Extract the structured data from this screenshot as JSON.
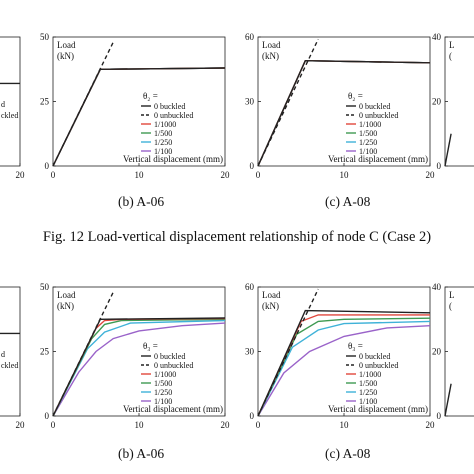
{
  "figure": {
    "caption_top": "Fig. 12 Load-vertical displacement relationship of node C (Case 2)"
  },
  "series_colors": {
    "0 buckled": "#222222",
    "0 unbuckled": "#222222",
    "1/1000": "#e0463c",
    "1/500": "#3f9a52",
    "1/250": "#3fb2d8",
    "1/100": "#9a63c9"
  },
  "chart_data": [
    {
      "type": "line",
      "panel": "left-top (cropped)",
      "subtitle": "",
      "xlabel": "",
      "ylabel": "",
      "xlim": [
        0,
        20
      ],
      "ylim": [
        0,
        50
      ],
      "x_ticks": [
        20
      ],
      "y_ticks": [],
      "legend_lines": [
        "d",
        "ckled"
      ],
      "series": [
        {
          "name": "0 buckled",
          "x": [
            0,
            20
          ],
          "y": [
            32,
            32
          ]
        }
      ]
    },
    {
      "type": "line",
      "panel": "b-top",
      "subtitle": "(b) A-06",
      "ylabel": "Load\n(kN)",
      "xlabel": "Vertical displacement (mm)",
      "xlim": [
        0,
        20
      ],
      "ylim": [
        0,
        50
      ],
      "x_ticks": [
        0,
        10,
        20
      ],
      "y_ticks": [
        0,
        25,
        50
      ],
      "legend_title": "θ₂ =",
      "legend": [
        "0 buckled",
        "0 unbuckled",
        "1/1000",
        "1/500",
        "1/250",
        "1/100"
      ],
      "series": [
        {
          "name": "0 buckled",
          "x": [
            0,
            5.5,
            20
          ],
          "y": [
            0,
            37.5,
            38
          ]
        },
        {
          "name": "0 unbuckled",
          "x": [
            0,
            7
          ],
          "y": [
            0,
            48
          ]
        },
        {
          "name": "1/1000",
          "x": [
            0,
            5.5,
            20
          ],
          "y": [
            0,
            37.5,
            38
          ]
        },
        {
          "name": "1/500",
          "x": [
            0,
            5.5,
            20
          ],
          "y": [
            0,
            37.5,
            38
          ]
        },
        {
          "name": "1/250",
          "x": [
            0,
            5.5,
            20
          ],
          "y": [
            0,
            37.5,
            38
          ]
        },
        {
          "name": "1/100",
          "x": [
            0,
            5.5,
            20
          ],
          "y": [
            0,
            37.5,
            38
          ]
        }
      ]
    },
    {
      "type": "line",
      "panel": "c-top",
      "subtitle": "(c) A-08",
      "ylabel": "Load\n(kN)",
      "xlabel": "Vertical displacement (mm)",
      "xlim": [
        0,
        20
      ],
      "ylim": [
        0,
        60
      ],
      "x_ticks": [
        0,
        10,
        20
      ],
      "y_ticks": [
        0,
        30,
        60
      ],
      "legend_title": "θ₂ =",
      "legend": [
        "0 buckled",
        "0 unbuckled",
        "1/1000",
        "1/500",
        "1/250",
        "1/100"
      ],
      "series": [
        {
          "name": "0 buckled",
          "x": [
            0,
            5.5,
            20
          ],
          "y": [
            0,
            49,
            48
          ]
        },
        {
          "name": "0 unbuckled",
          "x": [
            0,
            7
          ],
          "y": [
            0,
            59
          ]
        },
        {
          "name": "1/1000",
          "x": [
            0,
            5.5,
            20
          ],
          "y": [
            0,
            49,
            48
          ]
        },
        {
          "name": "1/500",
          "x": [
            0,
            5.5,
            20
          ],
          "y": [
            0,
            49,
            48
          ]
        },
        {
          "name": "1/250",
          "x": [
            0,
            5.5,
            20
          ],
          "y": [
            0,
            49,
            48
          ]
        },
        {
          "name": "1/100",
          "x": [
            0,
            5.5,
            20
          ],
          "y": [
            0,
            49,
            48
          ]
        }
      ]
    },
    {
      "type": "line",
      "panel": "right-top (cropped)",
      "subtitle": "",
      "ylabel": "L\n(",
      "xlabel": "",
      "xlim": [
        0,
        20
      ],
      "ylim": [
        0,
        40
      ],
      "x_ticks": [],
      "y_ticks": [
        0,
        20,
        40
      ],
      "series": [
        {
          "name": "0 buckled",
          "x": [
            0,
            0.7
          ],
          "y": [
            0,
            10
          ]
        }
      ]
    },
    {
      "type": "line",
      "panel": "left-bottom (cropped)",
      "subtitle": "",
      "xlabel": "",
      "ylabel": "",
      "xlim": [
        0,
        20
      ],
      "ylim": [
        0,
        50
      ],
      "x_ticks": [
        20
      ],
      "y_ticks": [],
      "legend_lines": [
        "d",
        "ckled"
      ],
      "series": [
        {
          "name": "0 buckled",
          "x": [
            0,
            20
          ],
          "y": [
            32,
            32
          ]
        }
      ]
    },
    {
      "type": "line",
      "panel": "b-bottom",
      "subtitle": "(b) A-06",
      "ylabel": "Load\n(kN)",
      "xlabel": "Vertical displacement (mm)",
      "xlim": [
        0,
        20
      ],
      "ylim": [
        0,
        50
      ],
      "x_ticks": [
        0,
        10,
        20
      ],
      "y_ticks": [
        0,
        25,
        50
      ],
      "legend_title": "θ₃ =",
      "legend": [
        "0 buckled",
        "0 unbuckled",
        "1/1000",
        "1/500",
        "1/250",
        "1/100"
      ],
      "series": [
        {
          "name": "0 buckled",
          "x": [
            0,
            5.5,
            20
          ],
          "y": [
            0,
            37.5,
            38
          ]
        },
        {
          "name": "0 unbuckled",
          "x": [
            0,
            7
          ],
          "y": [
            0,
            48
          ]
        },
        {
          "name": "1/1000",
          "x": [
            0,
            5,
            6,
            8,
            20
          ],
          "y": [
            0,
            34,
            37,
            37.5,
            37.8
          ]
        },
        {
          "name": "1/500",
          "x": [
            0,
            4.5,
            6,
            8,
            20
          ],
          "y": [
            0,
            30,
            35.5,
            37,
            37.5
          ]
        },
        {
          "name": "1/250",
          "x": [
            0,
            4,
            6,
            9,
            20
          ],
          "y": [
            0,
            26,
            32.5,
            36,
            37
          ]
        },
        {
          "name": "1/100",
          "x": [
            0,
            3,
            5,
            7,
            10,
            15,
            20
          ],
          "y": [
            0,
            17,
            25,
            30,
            33,
            35,
            36
          ]
        }
      ]
    },
    {
      "type": "line",
      "panel": "c-bottom",
      "subtitle": "(c) A-08",
      "ylabel": "Load\n(kN)",
      "xlabel": "Vertical displacement (mm)",
      "xlim": [
        0,
        20
      ],
      "ylim": [
        0,
        60
      ],
      "x_ticks": [
        0,
        10,
        20
      ],
      "y_ticks": [
        0,
        30,
        60
      ],
      "legend_title": "θ₃ =",
      "legend": [
        "0 buckled",
        "0 unbuckled",
        "1/1000",
        "1/500",
        "1/250",
        "1/100"
      ],
      "series": [
        {
          "name": "0 buckled",
          "x": [
            0,
            5.5,
            20
          ],
          "y": [
            0,
            49,
            48
          ]
        },
        {
          "name": "0 unbuckled",
          "x": [
            0,
            7
          ],
          "y": [
            0,
            59
          ]
        },
        {
          "name": "1/1000",
          "x": [
            0,
            5,
            7,
            20
          ],
          "y": [
            0,
            44,
            47,
            47
          ]
        },
        {
          "name": "1/500",
          "x": [
            0,
            4.5,
            7,
            10,
            20
          ],
          "y": [
            0,
            38,
            44,
            45,
            45.5
          ]
        },
        {
          "name": "1/250",
          "x": [
            0,
            4,
            7,
            10,
            20
          ],
          "y": [
            0,
            32,
            40,
            43,
            44
          ]
        },
        {
          "name": "1/100",
          "x": [
            0,
            3,
            6,
            10,
            15,
            20
          ],
          "y": [
            0,
            20,
            30,
            37,
            41,
            42
          ]
        }
      ]
    },
    {
      "type": "line",
      "panel": "right-bottom (cropped)",
      "subtitle": "",
      "ylabel": "L\n(",
      "xlabel": "",
      "xlim": [
        0,
        20
      ],
      "ylim": [
        0,
        40
      ],
      "x_ticks": [],
      "y_ticks": [
        0,
        20,
        40
      ],
      "series": [
        {
          "name": "0 buckled",
          "x": [
            0,
            0.7
          ],
          "y": [
            0,
            10
          ]
        }
      ]
    }
  ]
}
